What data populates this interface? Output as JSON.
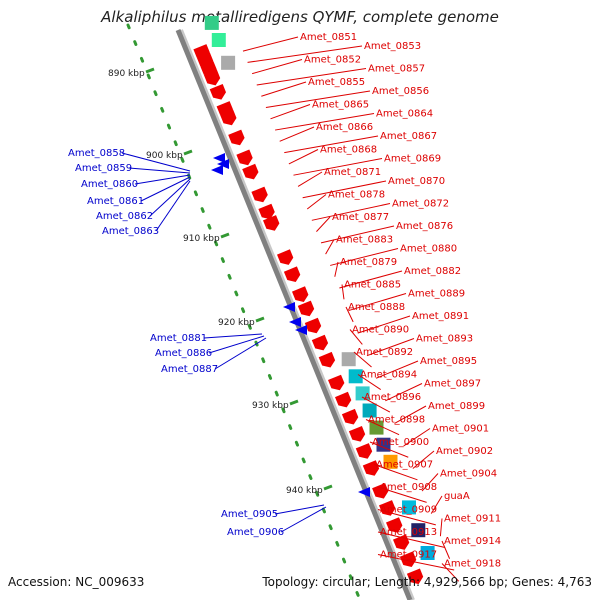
{
  "title": "Alkaliphilus metalliredigens QYMF, complete genome",
  "accession": "Accession: NC_009633",
  "summary": "Topology: circular; Length: 4,929,566 bp; Genes: 4,763",
  "ticks": [
    {
      "kbp": 890,
      "label": "890 kbp"
    },
    {
      "kbp": 900,
      "label": "900 kbp"
    },
    {
      "kbp": 910,
      "label": "910 kbp"
    },
    {
      "kbp": 920,
      "label": "920 kbp"
    },
    {
      "kbp": 930,
      "label": "930 kbp"
    },
    {
      "kbp": 940,
      "label": "940 kbp"
    }
  ],
  "colors": {
    "forward_label": "#dd0000",
    "reverse_label": "#0000cc",
    "forward_gene": "#ee0000",
    "reverse_gene": "#0000ee",
    "backbone": "#808080",
    "tick_dots": "#339933"
  },
  "forward_labels": [
    "Amet_0851",
    "Amet_0853",
    "Amet_0852",
    "Amet_0857",
    "Amet_0855",
    "Amet_0856",
    "Amet_0865",
    "Amet_0864",
    "Amet_0866",
    "Amet_0867",
    "Amet_0868",
    "Amet_0869",
    "Amet_0871",
    "Amet_0870",
    "Amet_0878",
    "Amet_0872",
    "Amet_0877",
    "Amet_0876",
    "Amet_0883",
    "Amet_0880",
    "Amet_0879",
    "Amet_0882",
    "Amet_0885",
    "Amet_0889",
    "Amet_0888",
    "Amet_0891",
    "Amet_0890",
    "Amet_0893",
    "Amet_0892",
    "Amet_0895",
    "Amet_0894",
    "Amet_0897",
    "Amet_0896",
    "Amet_0899",
    "Amet_0898",
    "Amet_0901",
    "Amet_0900",
    "Amet_0902",
    "Amet_0907",
    "Amet_0904",
    "Amet_0908",
    "guaA",
    "Amet_0909",
    "Amet_0911",
    "Amet_0913",
    "Amet_0914",
    "Amet_0917",
    "Amet_0918"
  ],
  "reverse_labels": [
    "Amet_0858",
    "Amet_0859",
    "Amet_0860",
    "Amet_0861",
    "Amet_0862",
    "Amet_0863",
    "Amet_0881",
    "Amet_0886",
    "Amet_0887",
    "Amet_0905",
    "Amet_0906"
  ]
}
